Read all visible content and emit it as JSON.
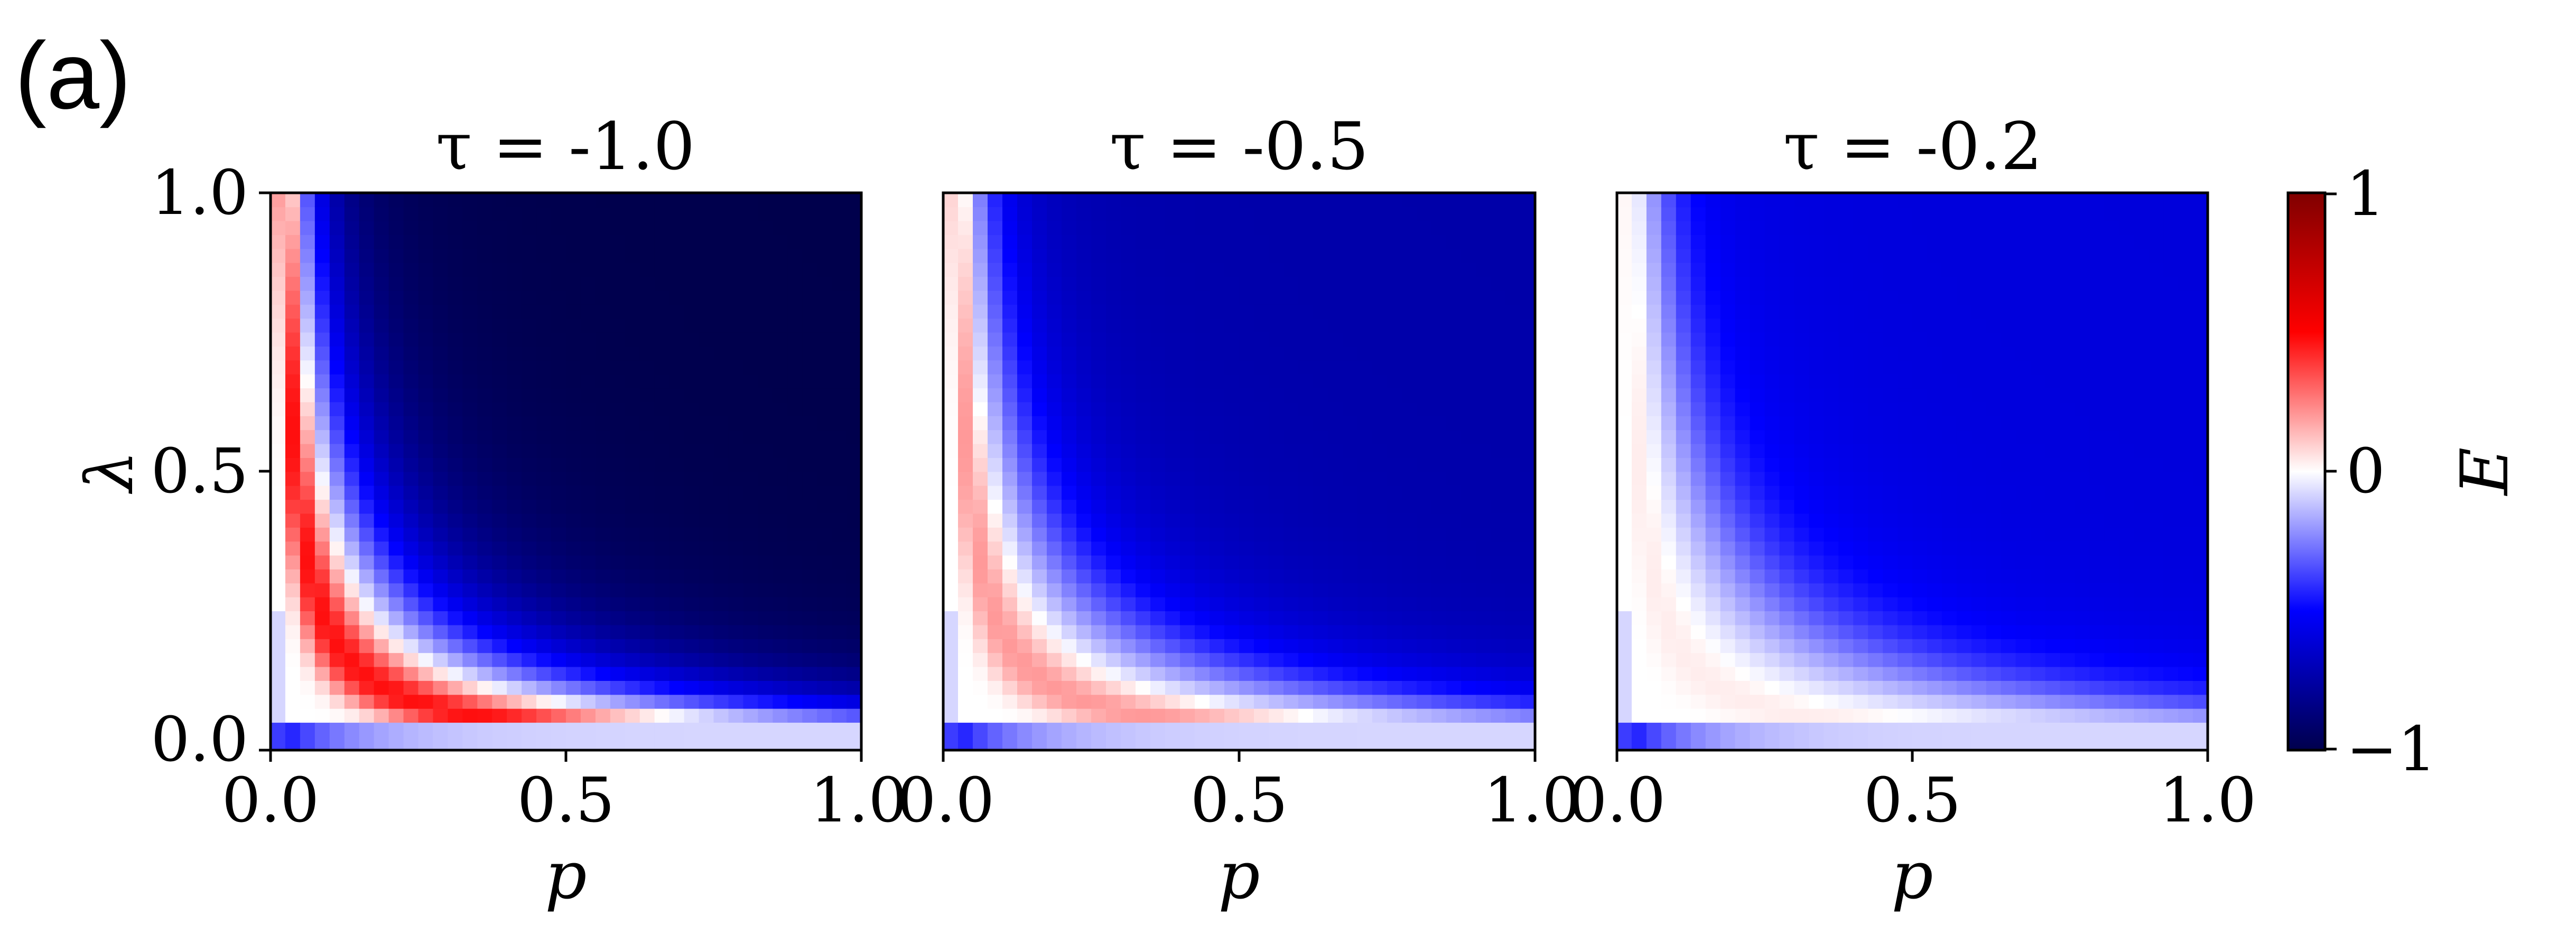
{
  "panel_label": "(a)",
  "chart_data": [
    {
      "type": "heatmap",
      "title": "τ = -1.0",
      "tau": -1.0,
      "xlabel": "p",
      "ylabel": "λ",
      "xlim": [
        0.0,
        1.0
      ],
      "ylim": [
        0.0,
        1.0
      ],
      "xticks": [
        "0.0",
        "0.5",
        "1.0"
      ],
      "yticks": [
        "0.0",
        "0.5",
        "1.0"
      ]
    },
    {
      "type": "heatmap",
      "title": "τ = -0.5",
      "tau": -0.5,
      "xlabel": "p",
      "ylabel": "",
      "xlim": [
        0.0,
        1.0
      ],
      "ylim": [
        0.0,
        1.0
      ],
      "xticks": [
        "0.0",
        "0.5",
        "1.0"
      ],
      "yticks": []
    },
    {
      "type": "heatmap",
      "title": "τ = -0.2",
      "tau": -0.2,
      "xlabel": "p",
      "ylabel": "",
      "xlim": [
        0.0,
        1.0
      ],
      "ylim": [
        0.0,
        1.0
      ],
      "xticks": [
        "0.0",
        "0.5",
        "1.0"
      ],
      "yticks": []
    }
  ],
  "colorbar": {
    "label": "E",
    "range": [
      -1,
      1
    ],
    "ticks": [
      "1",
      "0",
      "−1"
    ],
    "colormap": "seismic",
    "colors": {
      "low": "#00004c",
      "mid_low": "#0000ff",
      "mid": "#ffffff",
      "mid_high": "#ff0000",
      "high": "#800000"
    }
  }
}
